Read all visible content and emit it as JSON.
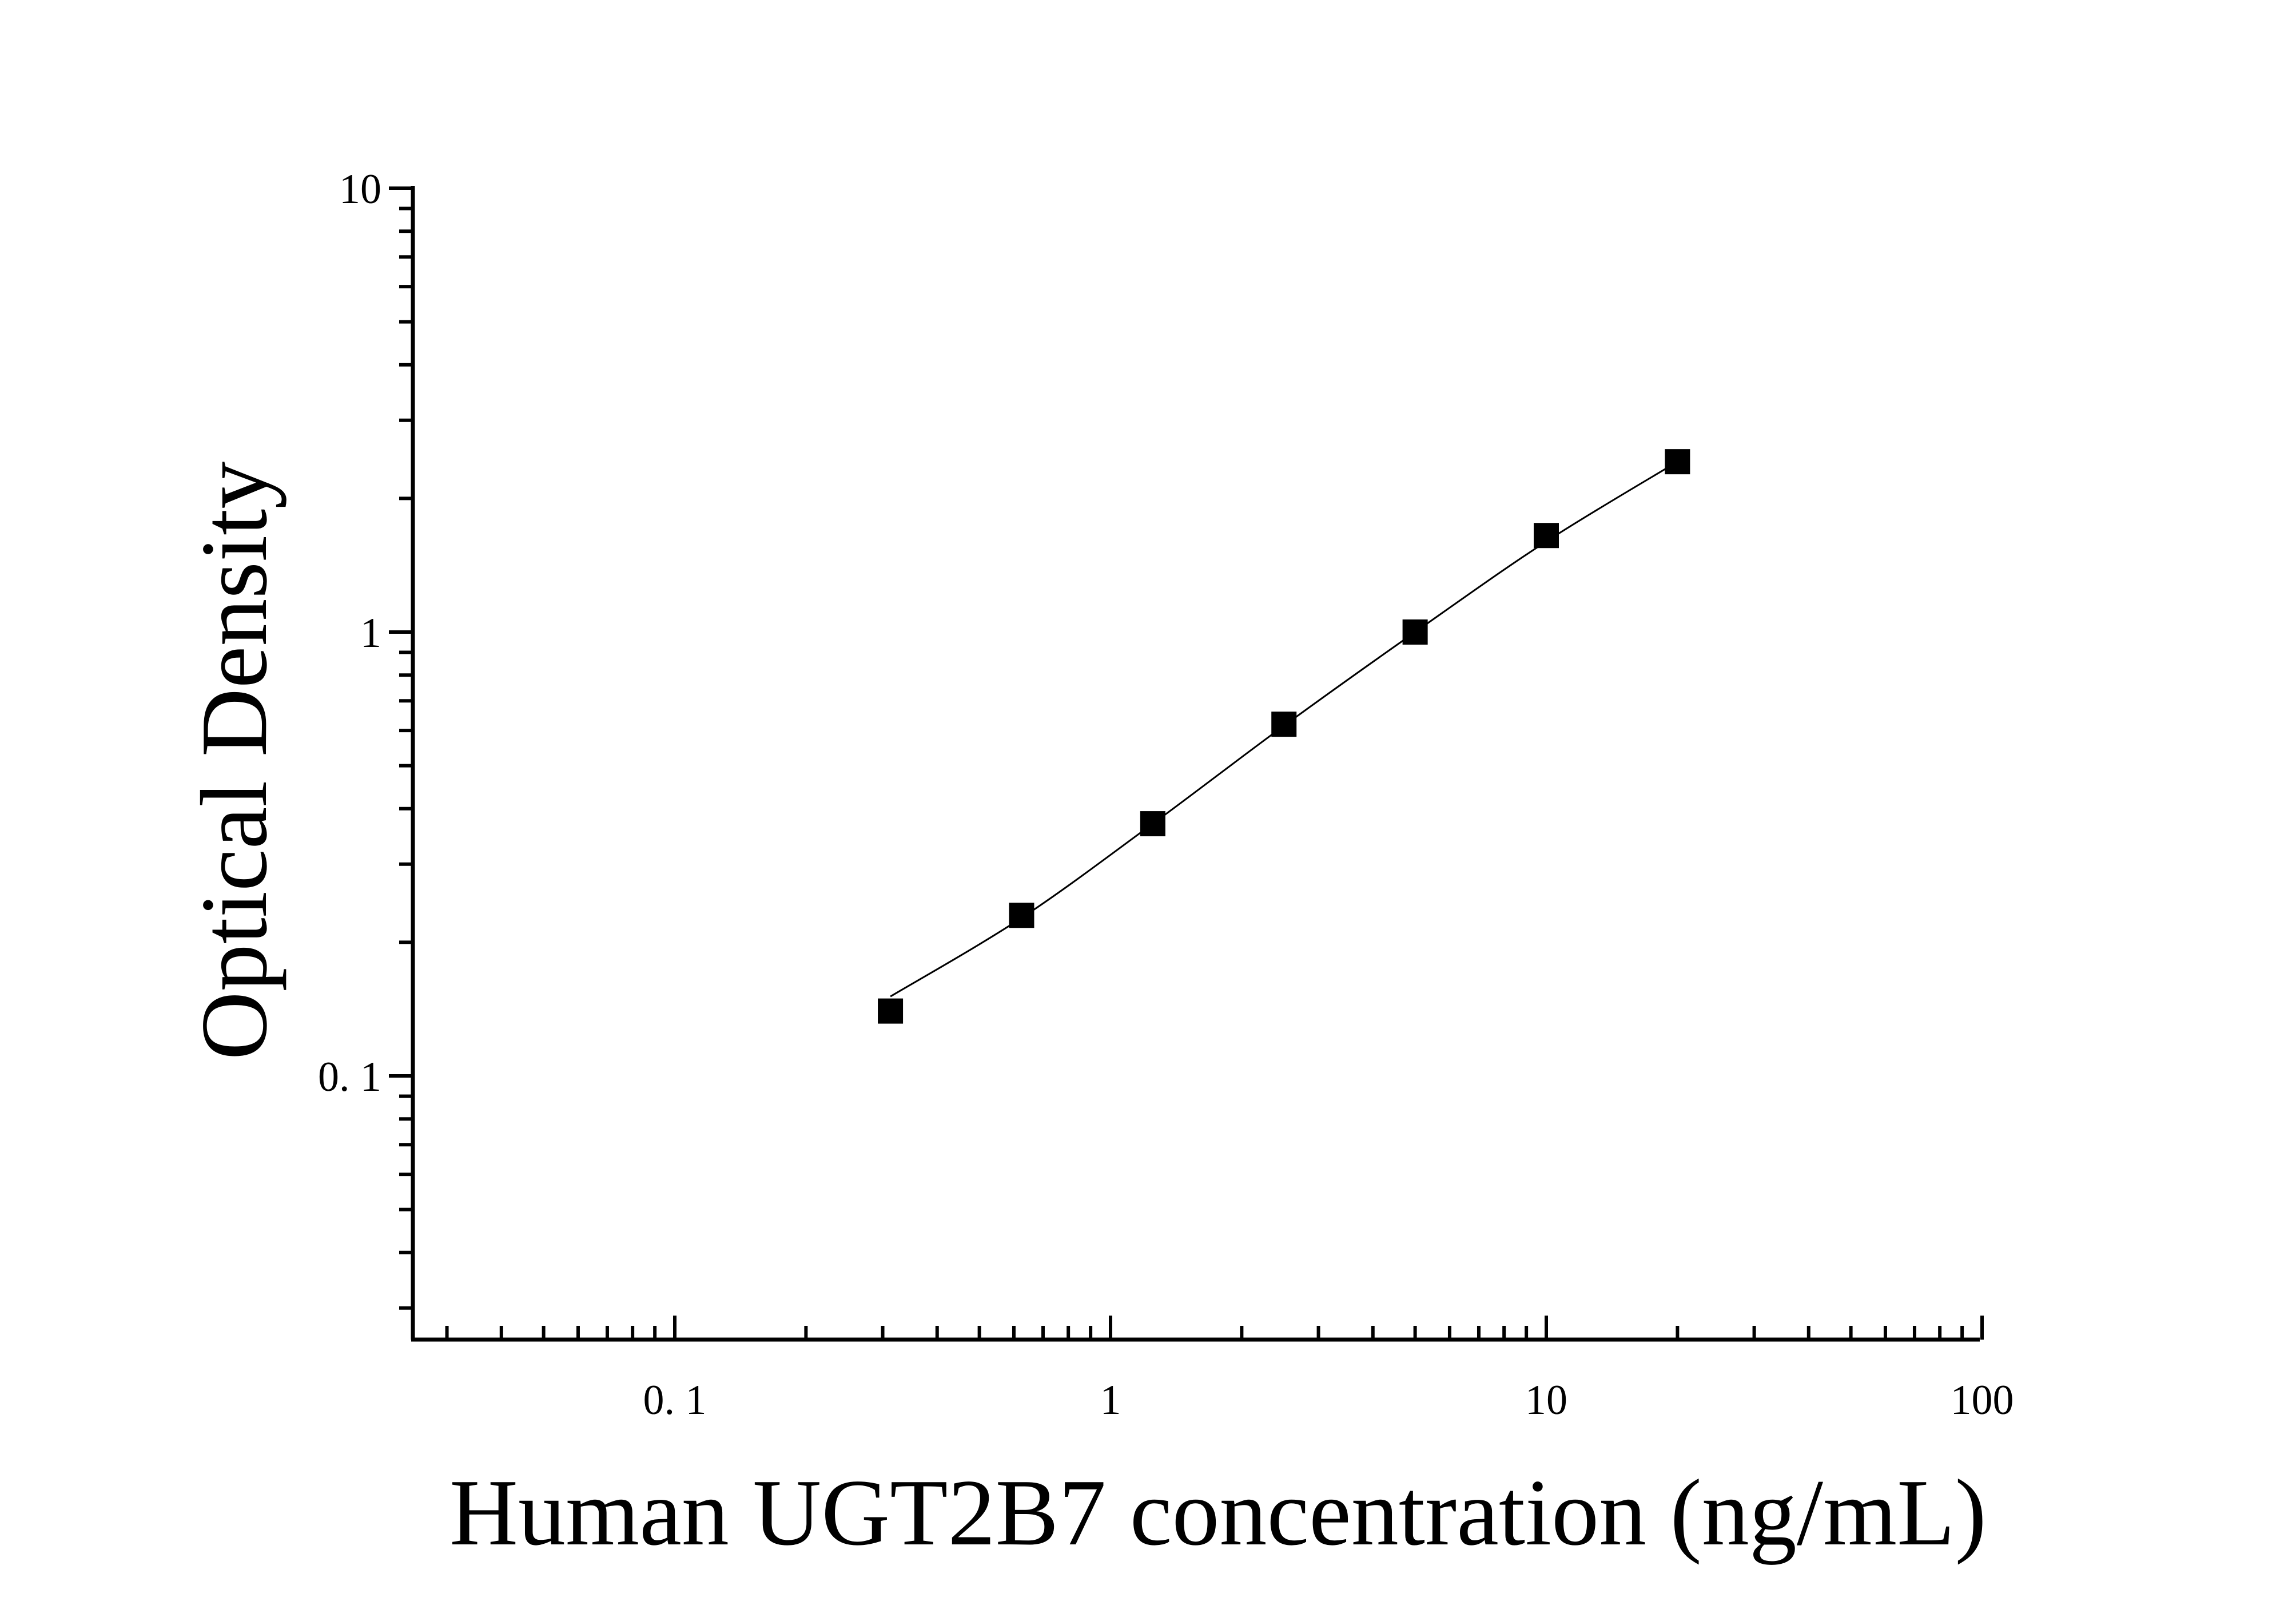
{
  "chart_data": {
    "type": "scatter",
    "title": "",
    "xlabel": "Human UGT2B7 concentration (ng/mL)",
    "ylabel": "Optical Density",
    "x_scale": "log",
    "y_scale": "log",
    "xlim": [
      0.025,
      100
    ],
    "ylim": [
      0.025,
      10
    ],
    "x_ticks": [
      {
        "value": 0.1,
        "label": "0. 1"
      },
      {
        "value": 1,
        "label": "1"
      },
      {
        "value": 10,
        "label": "10"
      },
      {
        "value": 100,
        "label": "100"
      }
    ],
    "y_ticks": [
      {
        "value": 0.1,
        "label": "0. 1"
      },
      {
        "value": 1,
        "label": "1"
      },
      {
        "value": 10,
        "label": "10"
      }
    ],
    "grid": false,
    "legend": "none",
    "series": [
      {
        "marker": "square",
        "color": "#000000",
        "x": [
          0.3125,
          0.625,
          1.25,
          2.5,
          5,
          10,
          20
        ],
        "y": [
          0.14,
          0.23,
          0.37,
          0.62,
          1.0,
          1.65,
          2.42
        ]
      }
    ],
    "fit_curve": {
      "style": "smooth",
      "color": "#000000",
      "x": [
        0.3125,
        0.625,
        1.25,
        2.5,
        5,
        10,
        20
      ],
      "y": [
        0.151,
        0.227,
        0.37,
        0.615,
        1.0,
        1.6,
        2.42
      ]
    }
  }
}
